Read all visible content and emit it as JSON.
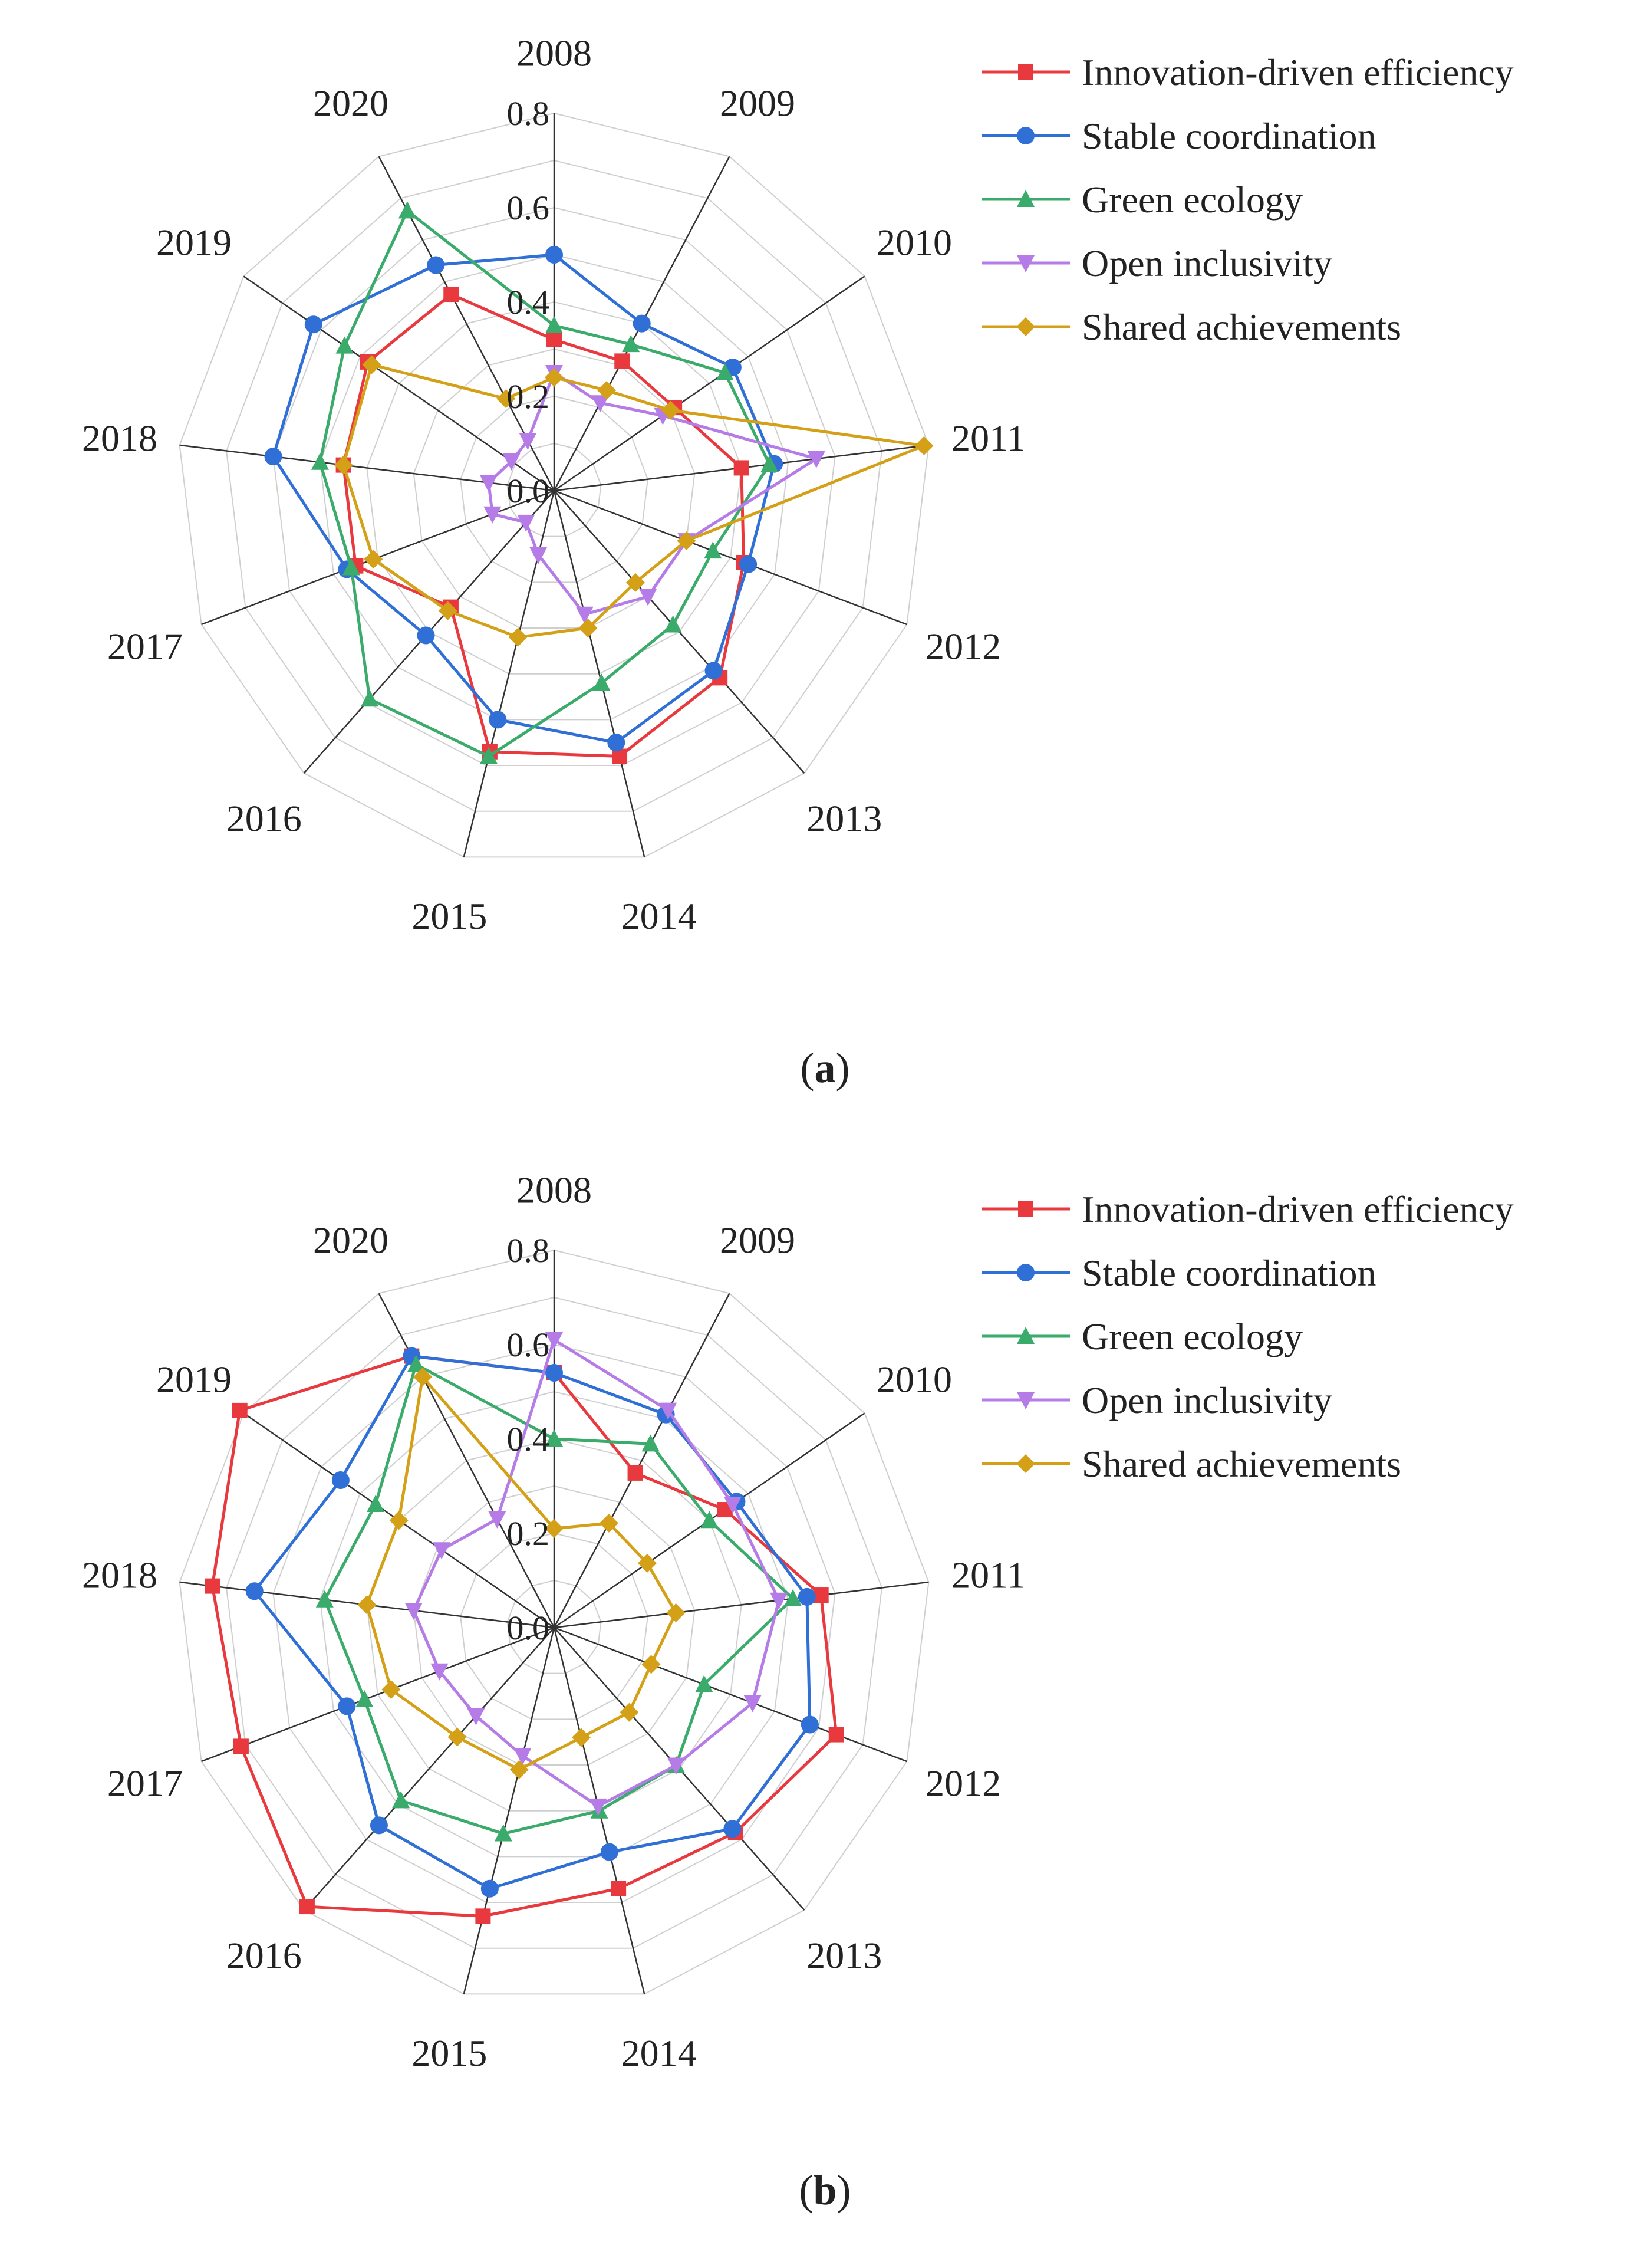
{
  "chart_data": [
    {
      "type": "radar",
      "panel_label": "a",
      "categories": [
        "2008",
        "2009",
        "2010",
        "2011",
        "2012",
        "2013",
        "2014",
        "2015",
        "2016",
        "2017",
        "2018",
        "2019",
        "2020"
      ],
      "tick_labels": [
        "0.0",
        "0.2",
        "0.4",
        "0.6",
        "0.8"
      ],
      "rlim": [
        0,
        0.8
      ],
      "legend_position": "top-right",
      "series": [
        {
          "name": "Innovation-driven efficiency",
          "color": "#e8393e",
          "marker": "square",
          "values": [
            0.32,
            0.31,
            0.31,
            0.4,
            0.43,
            0.53,
            0.58,
            0.57,
            0.33,
            0.45,
            0.45,
            0.48,
            0.47
          ]
        },
        {
          "name": "Stable coordination",
          "color": "#2f6fd6",
          "marker": "circle",
          "values": [
            0.5,
            0.4,
            0.46,
            0.47,
            0.44,
            0.51,
            0.55,
            0.5,
            0.41,
            0.47,
            0.6,
            0.62,
            0.54
          ]
        },
        {
          "name": "Green ecology",
          "color": "#3aab6a",
          "marker": "triangle-up",
          "values": [
            0.35,
            0.35,
            0.44,
            0.46,
            0.36,
            0.38,
            0.42,
            0.58,
            0.59,
            0.46,
            0.5,
            0.54,
            0.67
          ]
        },
        {
          "name": "Open inclusivity",
          "color": "#b57be6",
          "marker": "triangle-down",
          "values": [
            0.25,
            0.21,
            0.28,
            0.56,
            0.3,
            0.3,
            0.27,
            0.14,
            0.09,
            0.14,
            0.14,
            0.11,
            0.12
          ]
        },
        {
          "name": "Shared achievements",
          "color": "#d4a017",
          "marker": "diamond",
          "values": [
            0.24,
            0.24,
            0.3,
            0.79,
            0.3,
            0.26,
            0.3,
            0.32,
            0.34,
            0.41,
            0.45,
            0.47,
            0.22
          ]
        }
      ]
    },
    {
      "type": "radar",
      "panel_label": "b",
      "categories": [
        "2008",
        "2009",
        "2010",
        "2011",
        "2012",
        "2013",
        "2014",
        "2015",
        "2016",
        "2017",
        "2018",
        "2019",
        "2020"
      ],
      "tick_labels": [
        "0.0",
        "0.2",
        "0.4",
        "0.6",
        "0.8"
      ],
      "rlim": [
        0,
        0.8
      ],
      "legend_position": "top-right",
      "series": [
        {
          "name": "Innovation-driven efficiency",
          "color": "#e8393e",
          "marker": "square",
          "values": [
            0.54,
            0.37,
            0.44,
            0.57,
            0.64,
            0.58,
            0.57,
            0.63,
            0.79,
            0.71,
            0.73,
            0.81,
            0.65
          ]
        },
        {
          "name": "Stable coordination",
          "color": "#2f6fd6",
          "marker": "circle",
          "values": [
            0.54,
            0.51,
            0.47,
            0.54,
            0.58,
            0.57,
            0.49,
            0.57,
            0.56,
            0.47,
            0.64,
            0.55,
            0.65
          ]
        },
        {
          "name": "Green ecology",
          "color": "#3aab6a",
          "marker": "triangle-up",
          "values": [
            0.4,
            0.44,
            0.4,
            0.51,
            0.34,
            0.39,
            0.4,
            0.45,
            0.49,
            0.43,
            0.49,
            0.46,
            0.63
          ]
        },
        {
          "name": "Open inclusivity",
          "color": "#b57be6",
          "marker": "triangle-down",
          "values": [
            0.61,
            0.52,
            0.46,
            0.48,
            0.45,
            0.39,
            0.39,
            0.28,
            0.25,
            0.26,
            0.3,
            0.29,
            0.26
          ]
        },
        {
          "name": "Shared achievements",
          "color": "#d4a017",
          "marker": "diamond",
          "values": [
            0.21,
            0.25,
            0.24,
            0.26,
            0.22,
            0.24,
            0.24,
            0.31,
            0.31,
            0.37,
            0.4,
            0.4,
            0.6
          ]
        }
      ]
    }
  ],
  "captions": [
    {
      "open": "(",
      "letter": "a",
      "close": ")"
    },
    {
      "open": "(",
      "letter": "b",
      "close": ")"
    }
  ]
}
